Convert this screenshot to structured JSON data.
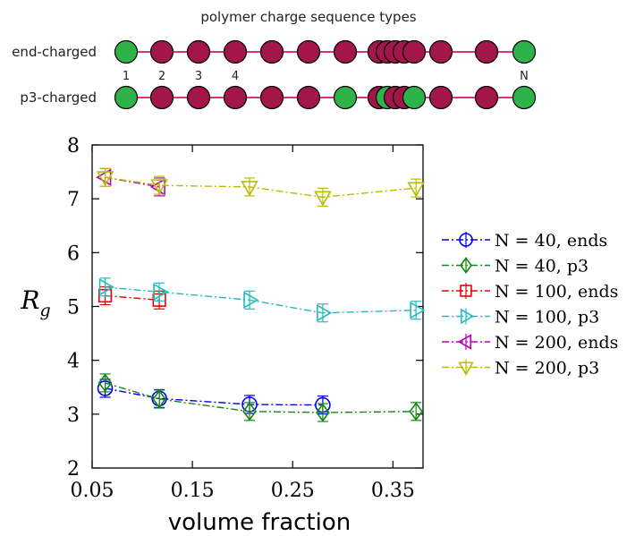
{
  "schematic": {
    "title": "polymer charge sequence types",
    "rows": [
      {
        "label": "end-charged",
        "beads": [
          "+",
          "-",
          "-",
          "-",
          "-",
          "-",
          "-",
          "-",
          "-",
          "-",
          "-",
          "-",
          "-",
          "-",
          "+"
        ]
      },
      {
        "label": "p3-charged",
        "beads": [
          "+",
          "-",
          "-",
          "-",
          "-",
          "-",
          "+",
          "-",
          "+",
          "-",
          "-",
          "+",
          "-",
          "-",
          "+"
        ]
      }
    ],
    "index_labels": [
      "1",
      "2",
      "3",
      "4",
      "N"
    ],
    "colors": {
      "charged": "#2eb34a",
      "neutral": "#a3164a",
      "bond": "#e0307a",
      "outline": "#000000"
    }
  },
  "chart_data": {
    "type": "line",
    "title": "",
    "xlabel": "volume fraction",
    "ylabel": "R",
    "ylabel_sub": "g",
    "xlim": [
      0.05,
      0.38
    ],
    "ylim": [
      2,
      8
    ],
    "xticks": [
      "0.05",
      "0.15",
      "0.25",
      "0.35"
    ],
    "yticks": [
      "2",
      "3",
      "4",
      "5",
      "6",
      "7",
      "8"
    ],
    "legend_position": "right",
    "series": [
      {
        "name": "N = 40, ends",
        "color": "#0000ee",
        "marker": "circle",
        "x": [
          0.063,
          0.117,
          0.207,
          0.28
        ],
        "y": [
          3.48,
          3.29,
          3.18,
          3.17
        ]
      },
      {
        "name": "N = 40, p3",
        "color": "#118811",
        "marker": "diamond",
        "x": [
          0.063,
          0.117,
          0.207,
          0.28,
          0.373
        ],
        "y": [
          3.58,
          3.28,
          3.05,
          3.03,
          3.05
        ]
      },
      {
        "name": "N = 100, ends",
        "color": "#ee0000",
        "marker": "square",
        "x": [
          0.063,
          0.117
        ],
        "y": [
          5.2,
          5.12
        ]
      },
      {
        "name": "N = 100, p3",
        "color": "#22bbbb",
        "marker": "tri-right",
        "x": [
          0.063,
          0.117,
          0.207,
          0.28,
          0.373
        ],
        "y": [
          5.36,
          5.27,
          5.12,
          4.88,
          4.93
        ]
      },
      {
        "name": "N = 200, ends",
        "color": "#bb00bb",
        "marker": "tri-left",
        "x": [
          0.063,
          0.117
        ],
        "y": [
          7.4,
          7.22
        ]
      },
      {
        "name": "N = 200, p3",
        "color": "#bbbb00",
        "marker": "tri-down",
        "x": [
          0.063,
          0.117,
          0.207,
          0.28,
          0.373
        ],
        "y": [
          7.4,
          7.25,
          7.22,
          7.03,
          7.2
        ]
      }
    ]
  }
}
